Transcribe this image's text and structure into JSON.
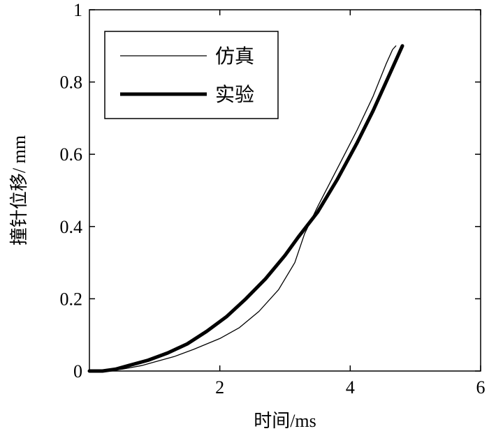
{
  "chart_data": {
    "type": "line",
    "title": "",
    "xlabel": "时间/ms",
    "ylabel": "撞针位移/ mm",
    "xlim": [
      0,
      6
    ],
    "ylim": [
      0,
      1
    ],
    "xticks": [
      2,
      4,
      6
    ],
    "xtick_labels": [
      "2",
      "4",
      "6"
    ],
    "yticks": [
      0,
      0.2,
      0.4,
      0.6,
      0.8,
      1
    ],
    "ytick_labels": [
      "0",
      "0.2",
      "0.4",
      "0.6",
      "0.8",
      "1"
    ],
    "grid": false,
    "legend_position": "top-left",
    "series": [
      {
        "name": "仿真",
        "color": "#000000",
        "line": "thin",
        "points": [
          [
            0,
            0
          ],
          [
            0.25,
            0
          ],
          [
            0.5,
            0.005
          ],
          [
            0.8,
            0.015
          ],
          [
            1.0,
            0.025
          ],
          [
            1.3,
            0.04
          ],
          [
            1.6,
            0.06
          ],
          [
            2.0,
            0.09
          ],
          [
            2.3,
            0.12
          ],
          [
            2.6,
            0.165
          ],
          [
            2.9,
            0.225
          ],
          [
            3.15,
            0.3
          ],
          [
            3.3,
            0.38
          ],
          [
            3.5,
            0.455
          ],
          [
            3.8,
            0.56
          ],
          [
            4.1,
            0.665
          ],
          [
            4.35,
            0.76
          ],
          [
            4.55,
            0.85
          ],
          [
            4.65,
            0.89
          ],
          [
            4.7,
            0.9
          ]
        ]
      },
      {
        "name": "实验",
        "color": "#000000",
        "line": "thick",
        "points": [
          [
            0,
            0
          ],
          [
            0.2,
            0
          ],
          [
            0.4,
            0.005
          ],
          [
            0.6,
            0.015
          ],
          [
            0.9,
            0.03
          ],
          [
            1.2,
            0.05
          ],
          [
            1.5,
            0.075
          ],
          [
            1.8,
            0.11
          ],
          [
            2.1,
            0.15
          ],
          [
            2.4,
            0.2
          ],
          [
            2.7,
            0.255
          ],
          [
            3.0,
            0.32
          ],
          [
            3.2,
            0.37
          ],
          [
            3.5,
            0.44
          ],
          [
            3.8,
            0.53
          ],
          [
            4.1,
            0.63
          ],
          [
            4.35,
            0.72
          ],
          [
            4.55,
            0.8
          ],
          [
            4.7,
            0.86
          ],
          [
            4.8,
            0.9
          ]
        ]
      }
    ]
  }
}
